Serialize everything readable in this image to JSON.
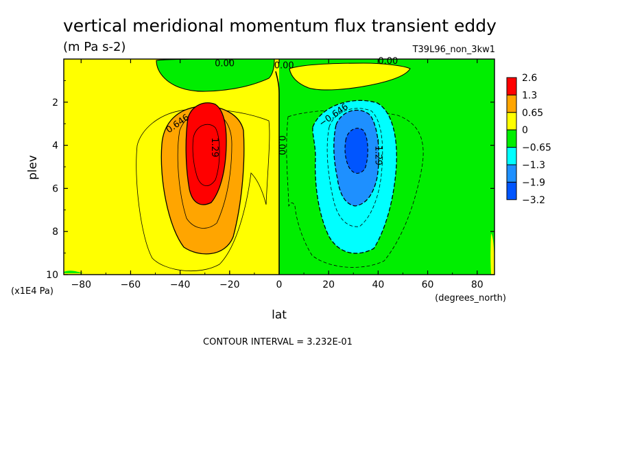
{
  "chart_data": {
    "type": "heatmap",
    "title": "vertical meridional momentum flux transient eddy",
    "units": "(m Pa s-2)",
    "run_label": "T39L96_non_3kw1",
    "xlabel": "lat",
    "x_units": "(degrees_north)",
    "ylabel": "plev",
    "y_units": "(x1E4 Pa)",
    "xlim": [
      -87,
      87
    ],
    "ylim": [
      10,
      0
    ],
    "x_ticks": [
      -80,
      -60,
      -40,
      -20,
      0,
      20,
      40,
      60,
      80
    ],
    "x_tick_labels": [
      "−80",
      "−60",
      "−40",
      "−20",
      "0",
      "20",
      "40",
      "60",
      "80"
    ],
    "y_ticks": [
      2,
      4,
      6,
      8,
      10
    ],
    "y_tick_labels": [
      "2",
      "4",
      "6",
      "8",
      "10"
    ],
    "contour_interval_text": "CONTOUR INTERVAL = 3.232E-01",
    "contour_labels": [
      {
        "text": "0.646",
        "lat": -41,
        "plev": 3.0
      },
      {
        "text": "1.29",
        "lat": -26,
        "plev": 4.1
      },
      {
        "text": "0.00",
        "lat": 1,
        "plev": 4.0
      },
      {
        "text": "−0.646",
        "lat": 22,
        "plev": 2.6
      },
      {
        "text": "−1.29",
        "lat": 40,
        "plev": 4.3
      },
      {
        "text": "0.00",
        "lat": -22,
        "plev": 0.2
      },
      {
        "text": "0.00",
        "lat": 2,
        "plev": 0.3
      },
      {
        "text": "0.00",
        "lat": 44,
        "plev": 0.1
      }
    ],
    "colorbar": {
      "labels": [
        "2.6",
        "1.3",
        "0.65",
        "0",
        "−0.65",
        "−1.3",
        "−1.9",
        "−3.2"
      ],
      "colors": [
        "#ff0000",
        "#ffa500",
        "#ffff00",
        "#00ee00",
        "#00ffff",
        "#1e90ff",
        "#0055ff"
      ]
    },
    "features": [
      {
        "name": "southern positive eddy flux maximum",
        "lat": -31,
        "plev": 4.3,
        "value": 2.0
      },
      {
        "name": "northern negative eddy flux minimum",
        "lat": 31,
        "plev": 4.2,
        "value": -2.0
      }
    ],
    "grid": false
  }
}
